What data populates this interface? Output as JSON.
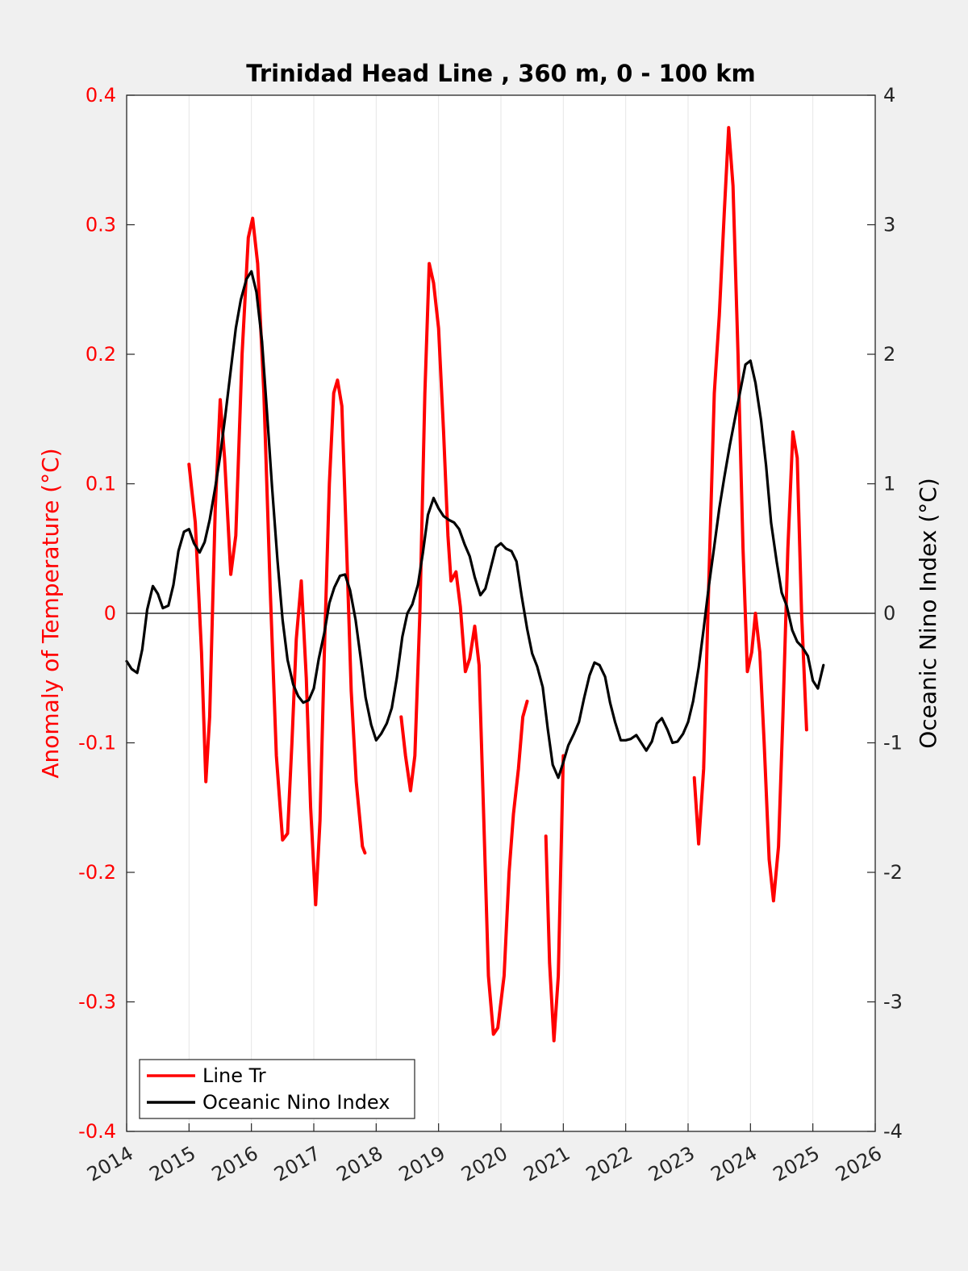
{
  "chart_data": {
    "type": "line",
    "title": "Trinidad Head Line , 360 m, 0 - 100 km",
    "xlim": [
      2014,
      2026
    ],
    "xticks": [
      "2014",
      "2015",
      "2016",
      "2017",
      "2018",
      "2019",
      "2020",
      "2021",
      "2022",
      "2023",
      "2024",
      "2025",
      "2026"
    ],
    "ylabel_left": "Anomaly of Temperature (°C)",
    "ylabel_right": "Oceanic Nino Index (°C)",
    "ylim_left": [
      -0.4,
      0.4
    ],
    "ylim_right": [
      -4,
      4
    ],
    "yticks_left": [
      "-0.4",
      "-0.3",
      "-0.2",
      "-0.1",
      "0",
      "0.1",
      "0.2",
      "0.3",
      "0.4"
    ],
    "yticks_right": [
      "-4",
      "-3",
      "-2",
      "-1",
      "0",
      "1",
      "2",
      "3",
      "4"
    ],
    "grid": "vertical",
    "legend_location": "bottom-left",
    "colors": {
      "line_tr": "#ff0000",
      "oni": "#000000",
      "axes_bg": "#ffffff",
      "figure_bg": "#f0f0f0"
    },
    "series": [
      {
        "name": "Line Tr",
        "axis": "left",
        "segments": [
          [
            [
              2015.0,
              0.115
            ],
            [
              2015.1,
              0.07
            ],
            [
              2015.2,
              -0.03
            ],
            [
              2015.27,
              -0.13
            ],
            [
              2015.33,
              -0.08
            ],
            [
              2015.42,
              0.08
            ],
            [
              2015.5,
              0.165
            ],
            [
              2015.57,
              0.12
            ],
            [
              2015.67,
              0.03
            ],
            [
              2015.75,
              0.06
            ],
            [
              2015.85,
              0.2
            ],
            [
              2015.95,
              0.29
            ],
            [
              2016.02,
              0.305
            ],
            [
              2016.1,
              0.27
            ],
            [
              2016.2,
              0.17
            ],
            [
              2016.3,
              0.02
            ],
            [
              2016.4,
              -0.11
            ],
            [
              2016.5,
              -0.175
            ],
            [
              2016.58,
              -0.17
            ],
            [
              2016.65,
              -0.1
            ],
            [
              2016.72,
              -0.02
            ],
            [
              2016.8,
              0.025
            ],
            [
              2016.88,
              -0.05
            ],
            [
              2016.95,
              -0.15
            ],
            [
              2017.03,
              -0.225
            ],
            [
              2017.1,
              -0.16
            ],
            [
              2017.17,
              -0.03
            ],
            [
              2017.25,
              0.1
            ],
            [
              2017.32,
              0.17
            ],
            [
              2017.38,
              0.18
            ],
            [
              2017.45,
              0.16
            ],
            [
              2017.52,
              0.06
            ],
            [
              2017.6,
              -0.06
            ],
            [
              2017.68,
              -0.13
            ],
            [
              2017.78,
              -0.18
            ],
            [
              2017.82,
              -0.185
            ]
          ],
          [
            [
              2018.4,
              -0.08
            ],
            [
              2018.47,
              -0.11
            ],
            [
              2018.55,
              -0.137
            ],
            [
              2018.62,
              -0.11
            ],
            [
              2018.7,
              0.0
            ],
            [
              2018.78,
              0.17
            ],
            [
              2018.85,
              0.27
            ],
            [
              2018.92,
              0.255
            ],
            [
              2019.0,
              0.22
            ],
            [
              2019.08,
              0.14
            ],
            [
              2019.15,
              0.06
            ],
            [
              2019.2,
              0.025
            ],
            [
              2019.28,
              0.032
            ],
            [
              2019.35,
              0.005
            ],
            [
              2019.43,
              -0.045
            ],
            [
              2019.5,
              -0.035
            ],
            [
              2019.58,
              -0.01
            ],
            [
              2019.65,
              -0.04
            ],
            [
              2019.72,
              -0.15
            ],
            [
              2019.8,
              -0.28
            ],
            [
              2019.88,
              -0.325
            ],
            [
              2019.95,
              -0.32
            ],
            [
              2020.05,
              -0.28
            ],
            [
              2020.13,
              -0.2
            ],
            [
              2020.2,
              -0.155
            ],
            [
              2020.28,
              -0.12
            ],
            [
              2020.35,
              -0.08
            ],
            [
              2020.42,
              -0.068
            ]
          ],
          [
            [
              2020.72,
              -0.172
            ],
            [
              2020.78,
              -0.27
            ],
            [
              2020.85,
              -0.33
            ],
            [
              2020.92,
              -0.28
            ],
            [
              2021.0,
              -0.11
            ]
          ],
          [
            [
              2023.1,
              -0.127
            ],
            [
              2023.17,
              -0.178
            ],
            [
              2023.25,
              -0.12
            ],
            [
              2023.33,
              0.02
            ],
            [
              2023.42,
              0.17
            ],
            [
              2023.5,
              0.23
            ],
            [
              2023.58,
              0.31
            ],
            [
              2023.65,
              0.375
            ],
            [
              2023.72,
              0.33
            ],
            [
              2023.8,
              0.2
            ],
            [
              2023.88,
              0.05
            ],
            [
              2023.95,
              -0.045
            ],
            [
              2024.02,
              -0.03
            ],
            [
              2024.08,
              0.0
            ],
            [
              2024.15,
              -0.03
            ],
            [
              2024.22,
              -0.1
            ],
            [
              2024.3,
              -0.19
            ],
            [
              2024.37,
              -0.222
            ],
            [
              2024.45,
              -0.18
            ],
            [
              2024.52,
              -0.08
            ],
            [
              2024.6,
              0.05
            ],
            [
              2024.68,
              0.14
            ],
            [
              2024.75,
              0.12
            ],
            [
              2024.82,
              0.0
            ],
            [
              2024.9,
              -0.09
            ]
          ]
        ]
      },
      {
        "name": "Oceanic Nino Index",
        "axis": "right",
        "segments": [
          [
            [
              2014.0,
              -0.37
            ],
            [
              2014.08,
              -0.43
            ],
            [
              2014.17,
              -0.46
            ],
            [
              2014.25,
              -0.28
            ],
            [
              2014.33,
              0.03
            ],
            [
              2014.42,
              0.21
            ],
            [
              2014.5,
              0.15
            ],
            [
              2014.58,
              0.04
            ],
            [
              2014.67,
              0.06
            ],
            [
              2014.75,
              0.22
            ],
            [
              2014.83,
              0.48
            ],
            [
              2014.92,
              0.63
            ],
            [
              2015.0,
              0.65
            ],
            [
              2015.08,
              0.54
            ],
            [
              2015.17,
              0.47
            ],
            [
              2015.25,
              0.55
            ],
            [
              2015.33,
              0.72
            ],
            [
              2015.42,
              0.97
            ],
            [
              2015.5,
              1.22
            ],
            [
              2015.58,
              1.52
            ],
            [
              2015.67,
              1.88
            ],
            [
              2015.75,
              2.2
            ],
            [
              2015.83,
              2.42
            ],
            [
              2015.92,
              2.58
            ],
            [
              2016.0,
              2.64
            ],
            [
              2016.08,
              2.48
            ],
            [
              2016.17,
              2.1
            ],
            [
              2016.25,
              1.55
            ],
            [
              2016.33,
              0.98
            ],
            [
              2016.42,
              0.4
            ],
            [
              2016.5,
              -0.05
            ],
            [
              2016.58,
              -0.36
            ],
            [
              2016.67,
              -0.55
            ],
            [
              2016.75,
              -0.64
            ],
            [
              2016.83,
              -0.69
            ],
            [
              2016.92,
              -0.67
            ],
            [
              2017.0,
              -0.58
            ],
            [
              2017.08,
              -0.35
            ],
            [
              2017.17,
              -0.15
            ],
            [
              2017.25,
              0.08
            ],
            [
              2017.33,
              0.2
            ],
            [
              2017.42,
              0.29
            ],
            [
              2017.5,
              0.3
            ],
            [
              2017.58,
              0.18
            ],
            [
              2017.67,
              -0.05
            ],
            [
              2017.75,
              -0.34
            ],
            [
              2017.83,
              -0.65
            ],
            [
              2017.92,
              -0.86
            ],
            [
              2018.0,
              -0.98
            ],
            [
              2018.08,
              -0.93
            ],
            [
              2018.17,
              -0.85
            ],
            [
              2018.25,
              -0.73
            ],
            [
              2018.33,
              -0.5
            ],
            [
              2018.42,
              -0.18
            ],
            [
              2018.5,
              0.0
            ],
            [
              2018.58,
              0.07
            ],
            [
              2018.67,
              0.22
            ],
            [
              2018.75,
              0.47
            ],
            [
              2018.83,
              0.76
            ],
            [
              2018.92,
              0.89
            ],
            [
              2019.0,
              0.81
            ],
            [
              2019.08,
              0.75
            ],
            [
              2019.17,
              0.72
            ],
            [
              2019.25,
              0.7
            ],
            [
              2019.33,
              0.65
            ],
            [
              2019.42,
              0.53
            ],
            [
              2019.5,
              0.44
            ],
            [
              2019.58,
              0.28
            ],
            [
              2019.67,
              0.14
            ],
            [
              2019.75,
              0.19
            ],
            [
              2019.83,
              0.34
            ],
            [
              2019.92,
              0.51
            ],
            [
              2020.0,
              0.54
            ],
            [
              2020.08,
              0.5
            ],
            [
              2020.17,
              0.48
            ],
            [
              2020.25,
              0.4
            ],
            [
              2020.33,
              0.14
            ],
            [
              2020.42,
              -0.12
            ],
            [
              2020.5,
              -0.31
            ],
            [
              2020.58,
              -0.41
            ],
            [
              2020.67,
              -0.57
            ],
            [
              2020.75,
              -0.89
            ],
            [
              2020.83,
              -1.17
            ],
            [
              2020.92,
              -1.27
            ],
            [
              2021.0,
              -1.15
            ],
            [
              2021.08,
              -1.02
            ],
            [
              2021.17,
              -0.93
            ],
            [
              2021.25,
              -0.84
            ],
            [
              2021.33,
              -0.66
            ],
            [
              2021.42,
              -0.48
            ],
            [
              2021.5,
              -0.38
            ],
            [
              2021.58,
              -0.4
            ],
            [
              2021.67,
              -0.49
            ],
            [
              2021.75,
              -0.69
            ],
            [
              2021.83,
              -0.84
            ],
            [
              2021.92,
              -0.98
            ],
            [
              2022.0,
              -0.98
            ],
            [
              2022.08,
              -0.97
            ],
            [
              2022.17,
              -0.94
            ],
            [
              2022.25,
              -1.0
            ],
            [
              2022.33,
              -1.06
            ],
            [
              2022.42,
              -0.99
            ],
            [
              2022.5,
              -0.85
            ],
            [
              2022.58,
              -0.81
            ],
            [
              2022.67,
              -0.9
            ],
            [
              2022.75,
              -1.0
            ],
            [
              2022.83,
              -0.99
            ],
            [
              2022.92,
              -0.93
            ],
            [
              2023.0,
              -0.84
            ],
            [
              2023.08,
              -0.68
            ],
            [
              2023.17,
              -0.42
            ],
            [
              2023.25,
              -0.12
            ],
            [
              2023.33,
              0.2
            ],
            [
              2023.42,
              0.52
            ],
            [
              2023.5,
              0.81
            ],
            [
              2023.58,
              1.05
            ],
            [
              2023.67,
              1.3
            ],
            [
              2023.75,
              1.5
            ],
            [
              2023.83,
              1.7
            ],
            [
              2023.92,
              1.92
            ],
            [
              2024.0,
              1.95
            ],
            [
              2024.08,
              1.78
            ],
            [
              2024.17,
              1.49
            ],
            [
              2024.25,
              1.14
            ],
            [
              2024.33,
              0.7
            ],
            [
              2024.42,
              0.4
            ],
            [
              2024.5,
              0.16
            ],
            [
              2024.58,
              0.06
            ],
            [
              2024.67,
              -0.13
            ],
            [
              2024.75,
              -0.22
            ],
            [
              2024.83,
              -0.26
            ],
            [
              2024.92,
              -0.33
            ],
            [
              2025.0,
              -0.52
            ],
            [
              2025.08,
              -0.58
            ],
            [
              2025.17,
              -0.4
            ]
          ]
        ]
      }
    ]
  }
}
